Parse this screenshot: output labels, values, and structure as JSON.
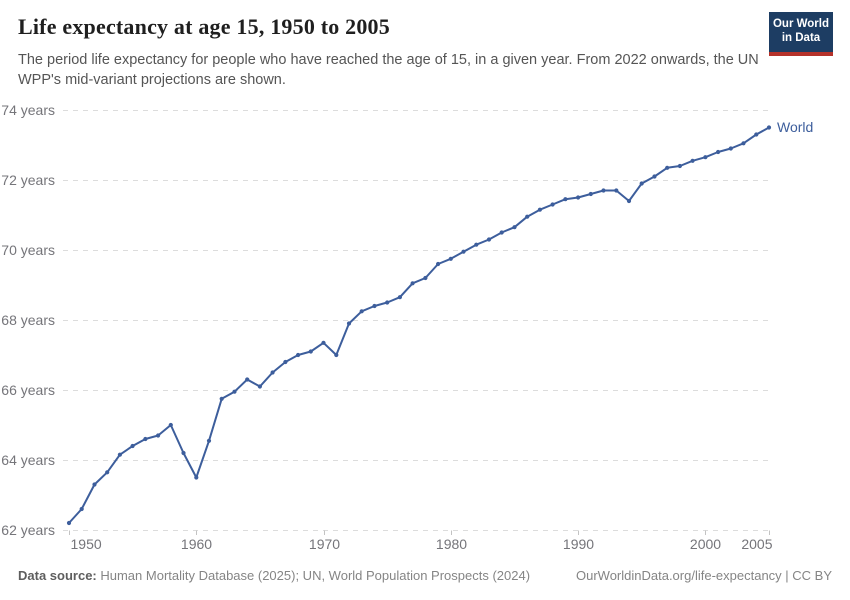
{
  "header": {
    "title": "Life expectancy at age 15, 1950 to 2005",
    "subtitle": "The period life expectancy for people who have reached the age of 15, in a given year. From 2022 onwards, the UN WPP's mid-variant projections are shown.",
    "logo": {
      "line1": "Our World",
      "line2": "in Data",
      "bg_color": "#1d3d63",
      "accent_color": "#b5322a"
    }
  },
  "footer": {
    "source_label": "Data source:",
    "source_text": " Human Mortality Database (2025); UN, World Population Prospects (2024)",
    "link_text": "OurWorldinData.org/life-expectancy | CC BY"
  },
  "chart_data": {
    "type": "line",
    "title": "Life expectancy at age 15, 1950 to 2005",
    "xlabel": "",
    "ylabel": "",
    "xlim": [
      1950,
      2005
    ],
    "ylim": [
      62,
      74
    ],
    "grid": "horizontal-dashed",
    "legend": "end-of-line-label",
    "x_ticks": [
      1950,
      1960,
      1970,
      1980,
      1990,
      2000,
      2005
    ],
    "x_tick_labels": [
      "1950",
      "1960",
      "1970",
      "1980",
      "1990",
      "2000",
      "2005"
    ],
    "y_ticks": [
      62,
      64,
      66,
      68,
      70,
      72,
      74
    ],
    "y_tick_labels": [
      "62 years",
      "64 years",
      "66 years",
      "68 years",
      "70 years",
      "72 years",
      "74 years"
    ],
    "series": [
      {
        "name": "World",
        "color": "#3d5e9c",
        "x": [
          1950,
          1951,
          1952,
          1953,
          1954,
          1955,
          1956,
          1957,
          1958,
          1959,
          1960,
          1961,
          1962,
          1963,
          1964,
          1965,
          1966,
          1967,
          1968,
          1969,
          1970,
          1971,
          1972,
          1973,
          1974,
          1975,
          1976,
          1977,
          1978,
          1979,
          1980,
          1981,
          1982,
          1983,
          1984,
          1985,
          1986,
          1987,
          1988,
          1989,
          1990,
          1991,
          1992,
          1993,
          1994,
          1995,
          1996,
          1997,
          1998,
          1999,
          2000,
          2001,
          2002,
          2003,
          2004,
          2005
        ],
        "values": [
          62.2,
          62.6,
          63.3,
          63.65,
          64.15,
          64.4,
          64.6,
          64.7,
          65.0,
          64.2,
          63.5,
          64.55,
          65.75,
          65.95,
          66.3,
          66.1,
          66.5,
          66.8,
          67.0,
          67.1,
          67.35,
          67.0,
          67.9,
          68.25,
          68.4,
          68.5,
          68.65,
          69.05,
          69.2,
          69.6,
          69.75,
          69.95,
          70.15,
          70.3,
          70.5,
          70.65,
          70.95,
          71.15,
          71.3,
          71.45,
          71.5,
          71.6,
          71.7,
          71.7,
          71.4,
          71.9,
          72.1,
          72.35,
          72.4,
          72.55,
          72.65,
          72.8,
          72.9,
          73.05,
          73.3,
          73.5
        ]
      }
    ]
  }
}
